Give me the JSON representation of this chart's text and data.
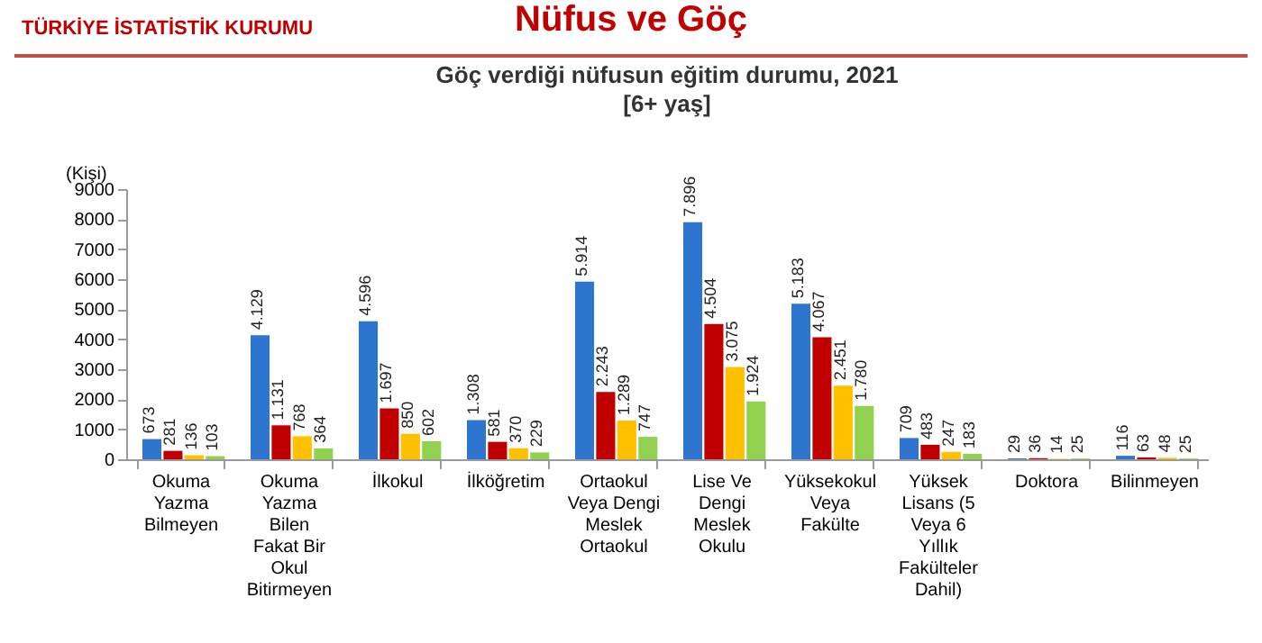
{
  "chart_data": {
    "type": "bar",
    "title": "Göç verdiği nüfusun eğitim durumu, 2021",
    "subtitle": "[6+ yaş]",
    "ylabel": "(Kişi)",
    "annotations": [
      "TÜRKİYE İSTATİSTİK KURUMU",
      "Nüfus ve Göç"
    ],
    "categories": [
      "Okuma Yazma Bilmeyen",
      "Okuma Yazma Bilen Fakat Bir Okul Bitirmeyen",
      "İlkokul",
      "İlköğretim",
      "Ortaokul Veya Dengi Meslek Ortaokul",
      "Lise Ve Dengi Meslek Okulu",
      "Yüksekokul Veya Fakülte",
      "Yüksek Lisans (5 Veya 6 Yıllık Fakülteler Dahil)",
      "Doktora",
      "Bilinmeyen"
    ],
    "ylim": [
      0,
      9000
    ],
    "yticks": [
      0,
      1000,
      2000,
      3000,
      4000,
      5000,
      6000,
      7000,
      8000,
      9000
    ],
    "grid": false,
    "legend": false,
    "series": [
      {
        "color": "#2e75d0",
        "values": [
          673,
          4129,
          4596,
          1308,
          5914,
          7896,
          5183,
          709,
          29,
          116
        ],
        "value_labels": [
          "673",
          "4.129",
          "4.596",
          "1.308",
          "5.914",
          "7.896",
          "5.183",
          "709",
          "29",
          "116"
        ]
      },
      {
        "color": "#c00000",
        "values": [
          281,
          1131,
          1697,
          581,
          2243,
          4504,
          4067,
          483,
          36,
          63
        ],
        "value_labels": [
          "281",
          "1.131",
          "1.697",
          "581",
          "2.243",
          "4.504",
          "4.067",
          "483",
          "36",
          "63"
        ]
      },
      {
        "color": "#ffc000",
        "values": [
          136,
          768,
          850,
          370,
          1289,
          3075,
          2451,
          247,
          14,
          48
        ],
        "value_labels": [
          "136",
          "768",
          "850",
          "370",
          "1.289",
          "3.075",
          "2.451",
          "247",
          "14",
          "48"
        ]
      },
      {
        "color": "#92d050",
        "values": [
          103,
          364,
          602,
          229,
          747,
          1924,
          1780,
          183,
          25,
          25
        ],
        "value_labels": [
          "103",
          "364",
          "602",
          "229",
          "747",
          "1.924",
          "1.780",
          "183",
          "25",
          "25"
        ]
      }
    ]
  }
}
